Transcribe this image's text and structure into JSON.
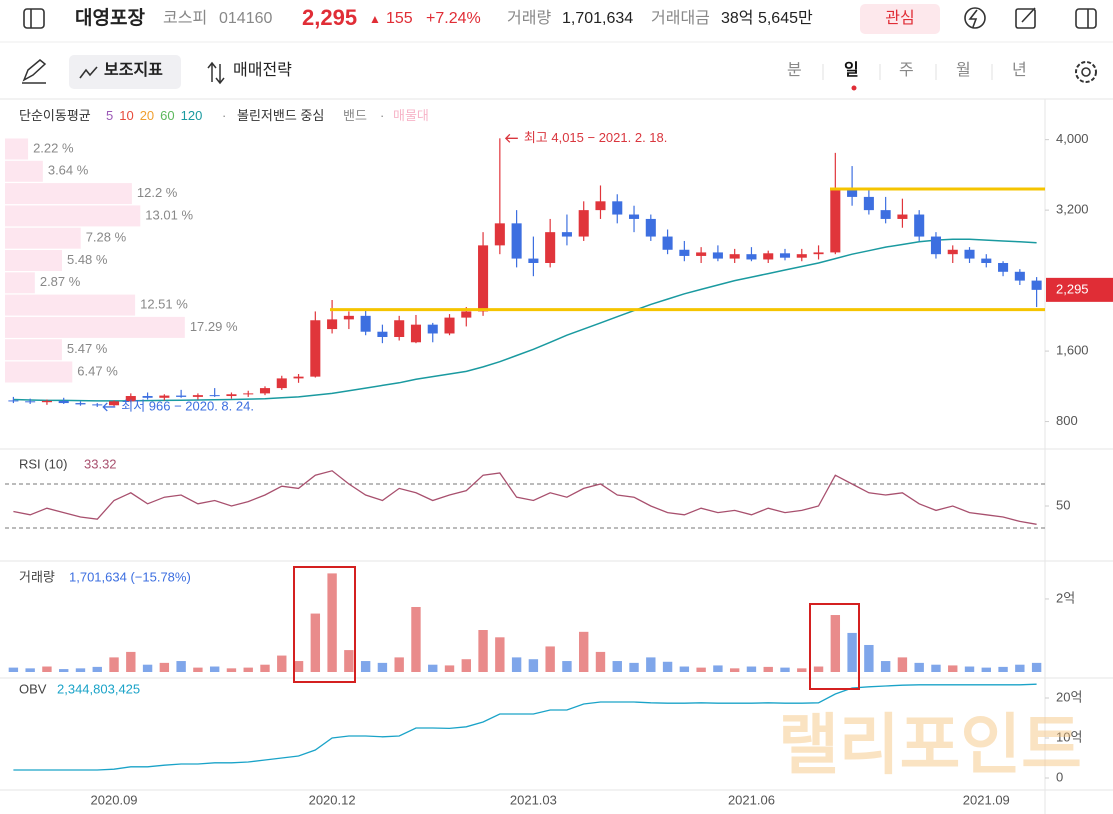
{
  "header": {
    "name": "대영포장",
    "market": "코스피",
    "code": "014160",
    "price": "2,295",
    "arrow": "▲",
    "change": "155",
    "change_pct": "+7.24%",
    "volume_label": "거래량",
    "volume": "1,701,634",
    "amount_label": "거래대금",
    "amount": "38억 5,645만",
    "watch": "관심"
  },
  "toolbar": {
    "indicator": "보조지표",
    "strategy": "매매전략",
    "periods": [
      "분",
      "일",
      "주",
      "월",
      "년"
    ]
  },
  "legend": {
    "ma_label": "단순이동평균",
    "bb_center": "볼린저밴드 중심",
    "bb_band": "밴드",
    "profile": "매물대"
  },
  "watermark": "랠리포인트",
  "chart_data": [
    {
      "type": "candlestick",
      "categories": [
        null,
        null,
        null,
        null,
        null,
        null,
        "2020.09",
        null,
        null,
        null,
        null,
        null,
        null,
        null,
        null,
        null,
        null,
        null,
        null,
        "2020.12",
        null,
        null,
        null,
        null,
        null,
        null,
        null,
        null,
        null,
        null,
        null,
        "2021.03",
        null,
        null,
        null,
        null,
        null,
        null,
        null,
        null,
        null,
        null,
        null,
        null,
        "2021.06",
        null,
        null,
        null,
        null,
        null,
        null,
        null,
        null,
        null,
        null,
        null,
        null,
        null,
        "2021.09",
        null,
        null,
        null
      ],
      "ohlc": [
        [
          1040,
          1080,
          1010,
          1030
        ],
        [
          1030,
          1060,
          1000,
          1020
        ],
        [
          1020,
          1050,
          990,
          1035
        ],
        [
          1035,
          1070,
          1000,
          1010
        ],
        [
          1010,
          1030,
          980,
          995
        ],
        [
          995,
          1010,
          966,
          985
        ],
        [
          985,
          1040,
          975,
          1030
        ],
        [
          1030,
          1120,
          1020,
          1090
        ],
        [
          1090,
          1130,
          1050,
          1070
        ],
        [
          1070,
          1110,
          1040,
          1095
        ],
        [
          1095,
          1160,
          1070,
          1080
        ],
        [
          1080,
          1120,
          1050,
          1100
        ],
        [
          1100,
          1180,
          1080,
          1090
        ],
        [
          1090,
          1130,
          1060,
          1110
        ],
        [
          1110,
          1150,
          1080,
          1120
        ],
        [
          1120,
          1200,
          1100,
          1180
        ],
        [
          1180,
          1320,
          1160,
          1290
        ],
        [
          1290,
          1340,
          1240,
          1310
        ],
        [
          1310,
          2050,
          1300,
          1950
        ],
        [
          1850,
          2180,
          1800,
          1960
        ],
        [
          1960,
          2050,
          1850,
          2000
        ],
        [
          2000,
          2060,
          1780,
          1820
        ],
        [
          1820,
          1900,
          1690,
          1760
        ],
        [
          1760,
          2000,
          1720,
          1950
        ],
        [
          1700,
          2010,
          1690,
          1900
        ],
        [
          1900,
          1920,
          1700,
          1800
        ],
        [
          1800,
          2020,
          1780,
          1980
        ],
        [
          1980,
          2100,
          1880,
          2050
        ],
        [
          2050,
          2950,
          2000,
          2800
        ],
        [
          2800,
          4015,
          2700,
          3050
        ],
        [
          3050,
          3200,
          2550,
          2650
        ],
        [
          2650,
          2900,
          2450,
          2600
        ],
        [
          2600,
          3100,
          2550,
          2950
        ],
        [
          2950,
          3150,
          2800,
          2900
        ],
        [
          2900,
          3300,
          2850,
          3200
        ],
        [
          3200,
          3480,
          3100,
          3300
        ],
        [
          3300,
          3380,
          3050,
          3150
        ],
        [
          3150,
          3250,
          2950,
          3100
        ],
        [
          3100,
          3150,
          2850,
          2900
        ],
        [
          2900,
          2980,
          2700,
          2750
        ],
        [
          2750,
          2850,
          2620,
          2680
        ],
        [
          2680,
          2780,
          2600,
          2720
        ],
        [
          2720,
          2800,
          2620,
          2650
        ],
        [
          2650,
          2760,
          2600,
          2700
        ],
        [
          2700,
          2780,
          2620,
          2640
        ],
        [
          2640,
          2740,
          2600,
          2710
        ],
        [
          2710,
          2760,
          2630,
          2660
        ],
        [
          2660,
          2760,
          2620,
          2700
        ],
        [
          2700,
          2800,
          2640,
          2720
        ],
        [
          2720,
          3850,
          2700,
          3450
        ],
        [
          3450,
          3700,
          3250,
          3350
        ],
        [
          3350,
          3450,
          3150,
          3200
        ],
        [
          3200,
          3350,
          3050,
          3100
        ],
        [
          3100,
          3330,
          3000,
          3150
        ],
        [
          3150,
          3200,
          2850,
          2900
        ],
        [
          2900,
          2950,
          2650,
          2700
        ],
        [
          2700,
          2800,
          2600,
          2750
        ],
        [
          2750,
          2780,
          2600,
          2650
        ],
        [
          2650,
          2700,
          2550,
          2600
        ],
        [
          2600,
          2620,
          2450,
          2500
        ],
        [
          2500,
          2530,
          2350,
          2400
        ],
        [
          2400,
          2440,
          2100,
          2295
        ]
      ],
      "up_color": "#e0353b",
      "down_color": "#3d6fe0",
      "series": [
        {
          "name": "5",
          "color": "#9b59b6"
        },
        {
          "name": "10",
          "color": "#e74c3c"
        },
        {
          "name": "20",
          "color": "#f0a030"
        },
        {
          "name": "60",
          "color": "#5cb85c"
        },
        {
          "name": "120",
          "color": "#1a9aa0",
          "values": [
            1050,
            1045,
            1040,
            1040,
            1038,
            1035,
            1035,
            1036,
            1038,
            1040,
            1042,
            1045,
            1048,
            1050,
            1055,
            1060,
            1070,
            1080,
            1100,
            1120,
            1150,
            1180,
            1210,
            1240,
            1280,
            1310,
            1340,
            1370,
            1420,
            1480,
            1550,
            1620,
            1700,
            1780,
            1850,
            1920,
            1990,
            2060,
            2130,
            2190,
            2250,
            2300,
            2350,
            2400,
            2440,
            2480,
            2520,
            2560,
            2600,
            2650,
            2700,
            2740,
            2780,
            2810,
            2840,
            2860,
            2870,
            2870,
            2860,
            2850,
            2840,
            2830
          ]
        }
      ],
      "ylim": [
        500,
        4450
      ],
      "yticks": [
        {
          "value": 800,
          "label": "800"
        },
        {
          "value": 1600,
          "label": "1,600"
        },
        {
          "value": 3200,
          "label": "3,200"
        },
        {
          "value": 4000,
          "label": "4,000"
        }
      ],
      "annotations": [
        {
          "label": "최고 4,015 − 2021. 2. 18.",
          "value": 4015,
          "color": "#d9363e"
        },
        {
          "label": "최저 966 − 2020. 8. 24.",
          "value": 966,
          "color": "#3d6fe0"
        }
      ],
      "hlines": {
        "values": [
          2070,
          3440
        ],
        "color": "#f5c400"
      },
      "volume_profile": {
        "values": [
          2.22,
          3.64,
          12.2,
          13.01,
          7.28,
          5.48,
          2.87,
          12.51,
          17.29,
          5.47,
          6.47
        ],
        "value_labels": [
          "2.22 %",
          "3.64 %",
          "12.2 %",
          "13.01 %",
          "7.28 %",
          "5.48 %",
          "2.87 %",
          "12.51 %",
          "17.29 %",
          "5.47 %",
          "6.47 %"
        ],
        "color": "#fde6ef"
      }
    },
    {
      "type": "line",
      "title": "RSI (10)",
      "color": "#a8506e",
      "values": [
        45,
        42,
        48,
        44,
        40,
        38,
        55,
        62,
        52,
        58,
        60,
        52,
        55,
        50,
        54,
        60,
        68,
        66,
        78,
        82,
        70,
        60,
        55,
        66,
        62,
        55,
        60,
        64,
        78,
        80,
        58,
        55,
        62,
        58,
        66,
        70,
        60,
        58,
        50,
        44,
        42,
        48,
        44,
        46,
        42,
        48,
        44,
        46,
        50,
        78,
        70,
        62,
        60,
        62,
        52,
        46,
        50,
        44,
        42,
        40,
        36,
        33.32
      ],
      "ylim": [
        0,
        100
      ],
      "yticks": [
        50
      ],
      "ref_lines": [
        70,
        30
      ]
    },
    {
      "type": "bar",
      "title": "거래량",
      "last_label": "1,701,634 (−15.78%)",
      "up_color": "#e98b8b",
      "down_color": "#7fa6ea",
      "values": [
        12000000,
        10000000,
        15000000,
        8000000,
        10000000,
        14000000,
        40000000,
        55000000,
        20000000,
        25000000,
        30000000,
        12000000,
        15000000,
        10000000,
        12000000,
        20000000,
        45000000,
        30000000,
        160000000,
        270000000,
        60000000,
        30000000,
        25000000,
        40000000,
        178000000,
        20000000,
        18000000,
        35000000,
        115000000,
        95000000,
        40000000,
        35000000,
        70000000,
        30000000,
        110000000,
        55000000,
        30000000,
        25000000,
        40000000,
        28000000,
        15000000,
        12000000,
        18000000,
        10000000,
        15000000,
        14000000,
        12000000,
        10000000,
        15000000,
        156000000,
        107000000,
        74000000,
        30000000,
        40000000,
        25000000,
        20000000,
        18000000,
        15000000,
        12000000,
        14000000,
        20000000,
        25000000
      ],
      "ylim": [
        0,
        293000000
      ],
      "yticks": [
        {
          "value": 200000000,
          "label": "2억"
        }
      ]
    },
    {
      "type": "line",
      "title": "OBV",
      "last_label": "2,344,803,425",
      "color": "#1aa3c8",
      "values": [
        200000000,
        200000000,
        200000000,
        200000000,
        200000000,
        200000000,
        220000000,
        280000000,
        280000000,
        320000000,
        350000000,
        350000000,
        380000000,
        380000000,
        400000000,
        450000000,
        500000000,
        550000000,
        700000000,
        1000000000,
        1050000000,
        1050000000,
        1030000000,
        1050000000,
        1250000000,
        1250000000,
        1240000000,
        1280000000,
        1400000000,
        1600000000,
        1600000000,
        1600000000,
        1700000000,
        1700000000,
        1850000000,
        1900000000,
        1900000000,
        1900000000,
        1880000000,
        1870000000,
        1870000000,
        1880000000,
        1870000000,
        1870000000,
        1870000000,
        1880000000,
        1870000000,
        1870000000,
        1880000000,
        2100000000,
        2250000000,
        2280000000,
        2300000000,
        2320000000,
        2330000000,
        2330000000,
        2330000000,
        2330000000,
        2330000000,
        2330000000,
        2330000000,
        2344803425
      ],
      "ylim": [
        0,
        2375000000
      ],
      "yticks": [
        0,
        {
          "value": 1000000000,
          "label": "10억"
        },
        {
          "value": 2000000000,
          "label": "20억"
        }
      ]
    }
  ]
}
